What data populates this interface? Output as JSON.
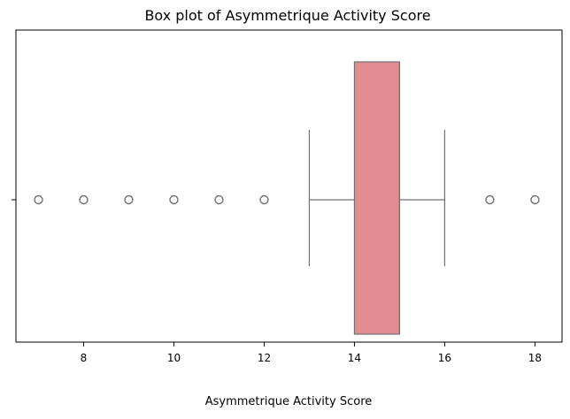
{
  "chart_data": {
    "type": "box",
    "title": "Box plot of Asymmetrique Activity Score",
    "xlabel": "Asymmetrique Activity Score",
    "ylabel": "",
    "xlim": [
      6.5,
      18.6
    ],
    "xticks": [
      8,
      10,
      12,
      14,
      16,
      18
    ],
    "grid": false,
    "orientation": "horizontal",
    "box": {
      "whisker_low": 13,
      "q1": 14,
      "median": 15,
      "q3": 15,
      "whisker_high": 16
    },
    "outliers": [
      7,
      8,
      9,
      10,
      11,
      12,
      17,
      18
    ],
    "colors": {
      "box_fill": "#e38d90",
      "line": "#707070",
      "outlier_edge": "#707070"
    }
  }
}
